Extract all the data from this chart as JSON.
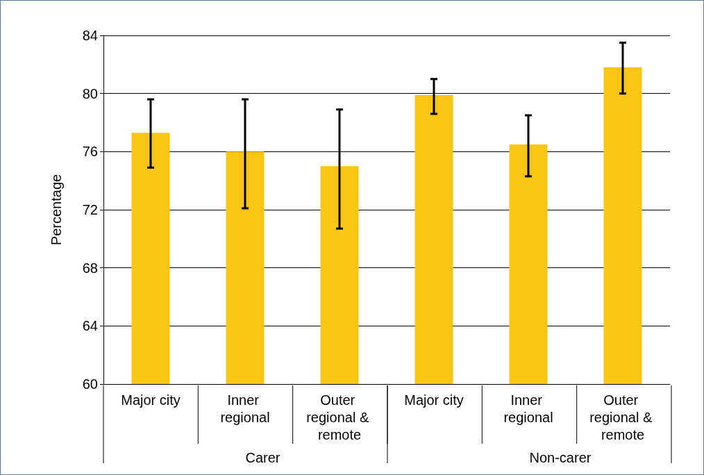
{
  "chart_data": {
    "type": "bar",
    "ylabel": "Percentage",
    "categories": [
      "Major city",
      "Inner regional",
      "Outer regional & remote",
      "Major city",
      "Inner regional",
      "Outer regional & remote"
    ],
    "values": [
      77.3,
      76.0,
      75.0,
      79.9,
      76.5,
      81.8
    ],
    "errors": [
      [
        74.9,
        79.6
      ],
      [
        72.1,
        79.6
      ],
      [
        70.7,
        78.9
      ],
      [
        78.6,
        81.0
      ],
      [
        74.3,
        78.5
      ],
      [
        80.0,
        83.5
      ]
    ],
    "color": "#fbc515",
    "ylim": [
      60,
      84
    ],
    "yticks": [
      60,
      64,
      68,
      72,
      76,
      80,
      84
    ],
    "grid": "y",
    "annotations": [
      "Carer",
      "Non-carer"
    ]
  }
}
